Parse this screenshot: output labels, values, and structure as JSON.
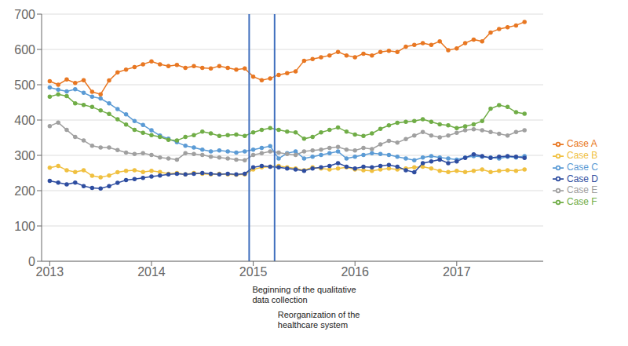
{
  "chart_data": {
    "type": "line",
    "marker": "circle",
    "grid": true,
    "legend": "right",
    "xlim": [
      2012.92,
      2017.85
    ],
    "xticks": [
      2013,
      2014,
      2015,
      2016,
      2017
    ],
    "ylim": [
      0,
      700
    ],
    "yticks": [
      0,
      100,
      200,
      300,
      400,
      500,
      600,
      700
    ],
    "x": [
      2013.0,
      2013.08333,
      2013.16666,
      2013.24999,
      2013.33332,
      2013.41665,
      2013.49998,
      2013.58331,
      2013.66664,
      2013.74997,
      2013.8333,
      2013.91663,
      2013.99996,
      2014.08329,
      2014.16662,
      2014.24995,
      2014.33328,
      2014.41661,
      2014.49994,
      2014.58327,
      2014.6666,
      2014.74993,
      2014.83326,
      2014.91659,
      2014.99992,
      2015.08325,
      2015.16658,
      2015.24991,
      2015.33324,
      2015.41657,
      2015.4999,
      2015.58323,
      2015.66656,
      2015.74989,
      2015.83322,
      2015.91655,
      2015.99988,
      2016.08321,
      2016.16654,
      2016.24987,
      2016.3332,
      2016.41653,
      2016.49986,
      2016.58319,
      2016.66652,
      2016.74985,
      2016.83318,
      2016.91651,
      2016.99984,
      2017.08317,
      2017.1665,
      2017.24983,
      2017.33316,
      2017.41649,
      2017.49982,
      2017.58315,
      2017.66648
    ],
    "series": [
      {
        "name": "Case A",
        "color": "#E87722",
        "values": [
          510,
          500,
          515,
          505,
          513,
          480,
          473,
          512,
          535,
          543,
          550,
          558,
          566,
          558,
          553,
          556,
          548,
          553,
          548,
          546,
          553,
          548,
          543,
          546,
          523,
          513,
          518,
          528,
          533,
          538,
          568,
          573,
          578,
          583,
          593,
          583,
          578,
          588,
          583,
          593,
          596,
          593,
          608,
          613,
          618,
          613,
          623,
          598,
          603,
          618,
          628,
          623,
          648,
          658,
          663,
          668,
          678
        ]
      },
      {
        "name": "Case B",
        "color": "#F0C040",
        "values": [
          265,
          270,
          258,
          253,
          258,
          242,
          238,
          243,
          252,
          256,
          258,
          253,
          256,
          253,
          248,
          250,
          246,
          250,
          248,
          246,
          248,
          246,
          245,
          246,
          260,
          266,
          268,
          270,
          266,
          263,
          258,
          266,
          263,
          260,
          263,
          266,
          260,
          258,
          256,
          260,
          263,
          260,
          263,
          266,
          268,
          263,
          256,
          253,
          256,
          253,
          256,
          260,
          253,
          256,
          258,
          256,
          260
        ]
      },
      {
        "name": "Case C",
        "color": "#5B9BD5",
        "values": [
          492,
          486,
          481,
          487,
          477,
          466,
          461,
          447,
          431,
          416,
          397,
          386,
          371,
          356,
          347,
          337,
          327,
          322,
          316,
          311,
          314,
          311,
          308,
          311,
          316,
          321,
          326,
          291,
          306,
          311,
          291,
          296,
          301,
          306,
          311,
          291,
          296,
          301,
          306,
          304,
          301,
          296,
          291,
          286,
          294,
          298,
          294,
          291,
          288,
          294,
          298,
          296,
          294,
          291,
          296,
          294,
          298
        ]
      },
      {
        "name": "Case D",
        "color": "#2E4DA0",
        "values": [
          228,
          223,
          218,
          223,
          213,
          208,
          206,
          213,
          222,
          230,
          233,
          236,
          240,
          243,
          246,
          248,
          246,
          248,
          250,
          248,
          246,
          248,
          246,
          248,
          266,
          270,
          268,
          266,
          263,
          260,
          256,
          263,
          266,
          270,
          278,
          268,
          263,
          268,
          266,
          270,
          273,
          268,
          258,
          252,
          278,
          283,
          288,
          278,
          283,
          293,
          303,
          298,
          293,
          296,
          298,
          296,
          293
        ]
      },
      {
        "name": "Case E",
        "color": "#A0A0A0",
        "values": [
          383,
          393,
          372,
          352,
          342,
          327,
          322,
          322,
          315,
          308,
          304,
          306,
          301,
          294,
          291,
          288,
          306,
          304,
          301,
          296,
          294,
          291,
          288,
          286,
          301,
          306,
          311,
          308,
          304,
          301,
          311,
          314,
          316,
          321,
          324,
          316,
          314,
          321,
          318,
          331,
          341,
          336,
          346,
          356,
          366,
          356,
          351,
          356,
          364,
          371,
          374,
          371,
          366,
          361,
          356,
          366,
          371
        ]
      },
      {
        "name": "Case F",
        "color": "#70AD47",
        "values": [
          466,
          473,
          468,
          447,
          443,
          437,
          427,
          417,
          402,
          387,
          372,
          364,
          357,
          352,
          344,
          342,
          352,
          357,
          367,
          362,
          355,
          357,
          359,
          355,
          365,
          372,
          377,
          372,
          367,
          365,
          347,
          352,
          365,
          372,
          379,
          367,
          359,
          355,
          362,
          375,
          385,
          392,
          395,
          397,
          402,
          395,
          388,
          385,
          377,
          382,
          388,
          397,
          432,
          442,
          437,
          422,
          418
        ]
      }
    ],
    "annotations": [
      {
        "x": 2014.96,
        "color": "#3F6FBE",
        "text": "Beginning of the qualitative\ndata collection"
      },
      {
        "x": 2015.21,
        "color": "#3F6FBE",
        "text": "Reorganization of the\nhealthcare system"
      }
    ]
  }
}
